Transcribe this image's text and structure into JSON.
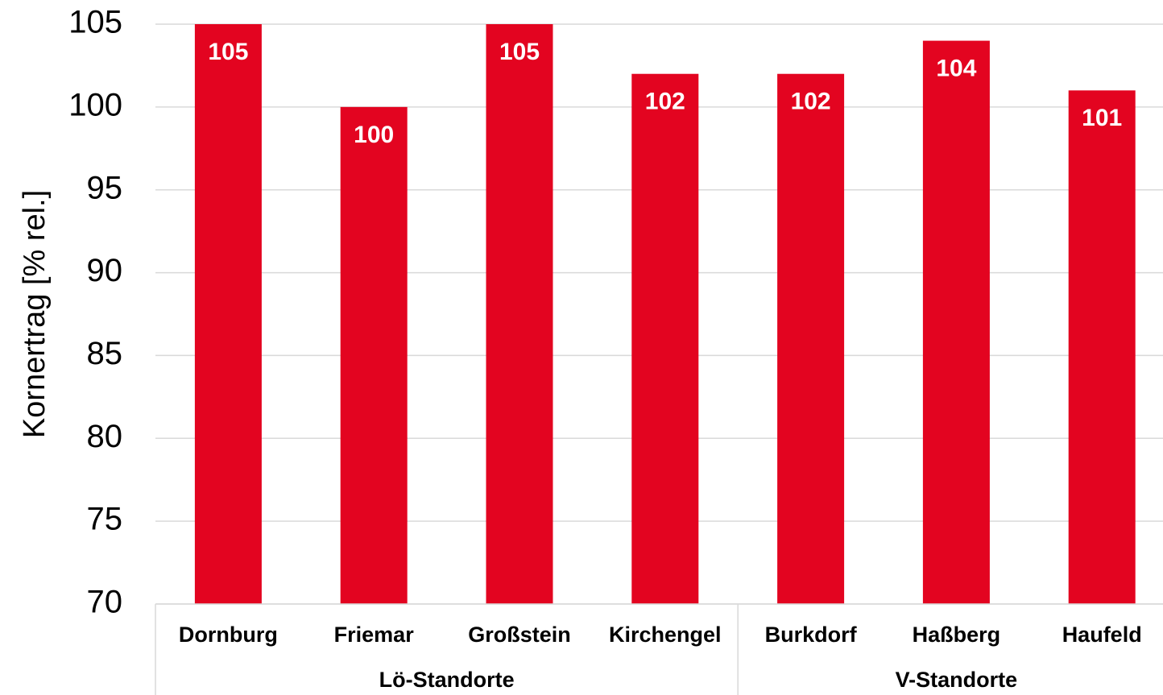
{
  "chart_data": {
    "type": "bar",
    "y_axis_label": "Kornertrag [% rel.]",
    "color": "#e30420",
    "groups": [
      {
        "name": "Lö-Standorte",
        "categories": [
          "Dornburg",
          "Friemar",
          "Großstein",
          "Kirchengel"
        ],
        "values": [
          105,
          100,
          105,
          102
        ]
      },
      {
        "name": "V-Standorte",
        "categories": [
          "Burkdorf",
          "Haßberg",
          "Haufeld"
        ],
        "values": [
          102,
          104,
          101
        ]
      }
    ],
    "ylim": [
      70,
      105
    ],
    "yticks": [
      70,
      75,
      80,
      85,
      90,
      95,
      100,
      105
    ],
    "grid": true
  }
}
